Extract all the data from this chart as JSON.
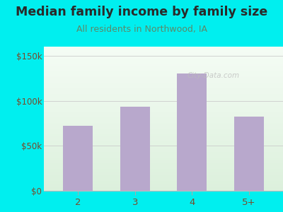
{
  "title": "Median family income by family size",
  "subtitle": "All residents in Northwood, IA",
  "categories": [
    "2",
    "3",
    "4",
    "5+"
  ],
  "values": [
    72000,
    93000,
    130000,
    82000
  ],
  "bar_color": "#b8a8cc",
  "outer_bg": "#00efef",
  "title_color": "#2a2a2a",
  "subtitle_color": "#5a8a6a",
  "tick_color": "#7a4a2a",
  "ytick_labels": [
    "$0",
    "$50k",
    "$100k",
    "$150k"
  ],
  "ytick_values": [
    0,
    50000,
    100000,
    150000
  ],
  "ylim": [
    0,
    160000
  ],
  "title_fontsize": 12.5,
  "subtitle_fontsize": 9,
  "xtick_color": "#7a4a2a",
  "watermark": "City-Data.com"
}
